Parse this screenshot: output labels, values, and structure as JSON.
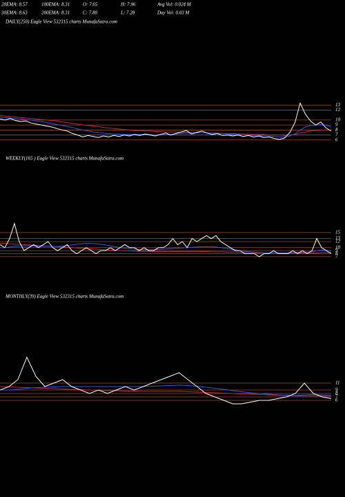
{
  "header": {
    "stats": [
      [
        "20EMA: 8.57",
        "100EMA: 8.31",
        "O: 7.65",
        "H: 7.96",
        "Avg Vol: 0.024  M"
      ],
      [
        "30EMA: 8.63",
        "200EMA: 8.31",
        "C: 7.80",
        "L: 7.28",
        "Day Vol: 0.03 M"
      ]
    ]
  },
  "chart_data": [
    {
      "type": "line",
      "title": "DAILY(250) Eagle   View  532315 charts MunafaSutra.com",
      "ylim": [
        5,
        14
      ],
      "yticks": [
        6,
        7,
        8,
        9,
        10,
        12,
        13
      ],
      "grid": true,
      "grid_color": "#a0522d",
      "series": [
        {
          "color": "#cc2244",
          "values": [
            10.9,
            10.8,
            10.7,
            10.6,
            10.5,
            10.4,
            10.3,
            10.2,
            10.1,
            10.0,
            9.9,
            9.8,
            9.6,
            9.5,
            9.3,
            9.2,
            9.0,
            8.9,
            8.8,
            8.7,
            8.5,
            8.4,
            8.3,
            8.2,
            8.1,
            8.0,
            7.9,
            7.9,
            7.8,
            7.8,
            7.7,
            7.7,
            7.6,
            7.6,
            7.6,
            7.5,
            7.5,
            7.5,
            7.5,
            7.5,
            7.4,
            7.4,
            7.4,
            7.3,
            7.3,
            7.3,
            7.2,
            7.2,
            7.2,
            7.1,
            7.1,
            7.1,
            7.0,
            7.0,
            7.0,
            6.9,
            7.0,
            7.1,
            7.4,
            7.6,
            7.8,
            7.9,
            8.0,
            8.0,
            8.0
          ]
        },
        {
          "color": "#3355ee",
          "values": [
            10.6,
            10.5,
            10.4,
            10.3,
            10.2,
            10.1,
            10.0,
            9.8,
            9.7,
            9.5,
            9.3,
            9.1,
            8.9,
            8.7,
            8.5,
            8.2,
            8.0,
            7.8,
            7.6,
            7.5,
            7.4,
            7.3,
            7.2,
            7.2,
            7.1,
            7.1,
            7.1,
            7.1,
            7.1,
            7.1,
            7.0,
            7.1,
            7.1,
            7.1,
            7.2,
            7.3,
            7.4,
            7.4,
            7.4,
            7.5,
            7.4,
            7.4,
            7.3,
            7.3,
            7.2,
            7.1,
            7.1,
            7.0,
            7.0,
            6.9,
            6.9,
            6.8,
            6.8,
            6.7,
            6.6,
            6.6,
            6.8,
            7.2,
            8.0,
            8.6,
            8.9,
            9.0,
            9.1,
            9.0,
            8.6
          ]
        },
        {
          "color": "#ffffff",
          "values": [
            10.2,
            10.0,
            10.3,
            9.9,
            9.7,
            9.8,
            9.4,
            9.2,
            9.0,
            8.8,
            8.6,
            8.3,
            8.0,
            7.8,
            7.3,
            7.0,
            6.6,
            6.9,
            6.7,
            6.5,
            6.8,
            6.6,
            6.9,
            6.7,
            7.0,
            6.8,
            7.1,
            6.9,
            7.2,
            7.0,
            6.8,
            7.1,
            7.4,
            7.0,
            7.3,
            7.6,
            7.9,
            7.2,
            7.5,
            7.8,
            7.4,
            7.1,
            7.3,
            6.9,
            7.0,
            6.8,
            7.0,
            6.7,
            6.9,
            6.6,
            6.8,
            6.5,
            6.6,
            6.3,
            6.1,
            6.4,
            7.5,
            9.5,
            13.4,
            11.2,
            9.8,
            9.0,
            9.6,
            8.4,
            7.8
          ]
        }
      ]
    },
    {
      "type": "line",
      "title": "WEEKLY(165                      ) Eagle   View  532315 charts MunafaSutra.com",
      "ylim": [
        4,
        20
      ],
      "yticks": [
        7,
        8,
        9,
        10,
        12,
        13,
        15
      ],
      "grid": true,
      "grid_color": "#a0522d",
      "series": [
        {
          "color": "#cc2244",
          "values": [
            11.5,
            11.4,
            11.3,
            11.2,
            11.1,
            11.0,
            10.9,
            10.8,
            10.7,
            10.6,
            10.5,
            10.4,
            10.3,
            10.2,
            10.1,
            10.0,
            9.9,
            9.8,
            9.7,
            9.6,
            9.5,
            9.4,
            9.3,
            9.2,
            9.1,
            9.0,
            9.0,
            8.9,
            8.9,
            8.8,
            8.8,
            8.8,
            8.7,
            8.7,
            8.7,
            8.7,
            8.7,
            8.7,
            8.7,
            8.7,
            8.7,
            8.7,
            8.7,
            8.7,
            8.6,
            8.6,
            8.6,
            8.5,
            8.5,
            8.5,
            8.4,
            8.4,
            8.4,
            8.3,
            8.3,
            8.3,
            8.3,
            8.3,
            8.2,
            8.2,
            8.2,
            8.2,
            8.2,
            8.2,
            8.2,
            8.2,
            8.3,
            8.4,
            8.4,
            8.4
          ]
        },
        {
          "color": "#3355ee",
          "values": [
            10,
            10,
            10.2,
            10.5,
            10.6,
            10.6,
            10.6,
            10.6,
            10.5,
            10.5,
            10.5,
            10.4,
            10.4,
            10.5,
            10.7,
            10.9,
            11.1,
            11.3,
            11.4,
            11.4,
            11.3,
            11.1,
            10.9,
            10.6,
            10.3,
            10.0,
            9.8,
            9.6,
            9.5,
            9.4,
            9.3,
            9.3,
            9.3,
            9.4,
            9.5,
            9.6,
            9.7,
            9.8,
            9.9,
            10,
            10.1,
            10.2,
            10.3,
            10.3,
            10.3,
            10.2,
            10,
            9.8,
            9.5,
            9.3,
            9.0,
            8.8,
            8.6,
            8.5,
            8.4,
            8.3,
            8.3,
            8.3,
            8.3,
            8.3,
            8.3,
            8.4,
            8.4,
            8.5,
            8.5,
            8.6,
            9.0,
            9.2,
            9.1,
            8.9
          ]
        },
        {
          "color": "#ffffff",
          "values": [
            11,
            10,
            13,
            18,
            12,
            9,
            10,
            11,
            10,
            11,
            12,
            10,
            9,
            10,
            11,
            9,
            8,
            9,
            10,
            9,
            8,
            9,
            9,
            10,
            9,
            10,
            11,
            10,
            10,
            9,
            10,
            9,
            9,
            10,
            10,
            11,
            13,
            11,
            12,
            10,
            13,
            12,
            13,
            14,
            13,
            14,
            12,
            11,
            10,
            9,
            9,
            8,
            8,
            8,
            7,
            8,
            8,
            9,
            8,
            8,
            8,
            9,
            8,
            9,
            8,
            9,
            13,
            10,
            9,
            8
          ]
        }
      ]
    },
    {
      "type": "line",
      "title": "MONTHLY(39) Eagle   View  532315 charts MunafaSutra.com",
      "ylim": [
        4,
        19
      ],
      "yticks": [
        6,
        7,
        8,
        9,
        11
      ],
      "grid": true,
      "grid_color": "#a0522d",
      "series": [
        {
          "color": "#cc2244",
          "values": [
            10,
            9.9,
            9.8,
            9.7,
            9.6,
            9.5,
            9.4,
            9.3,
            9.2,
            9.1,
            9.0,
            8.9,
            8.8,
            8.8,
            8.7,
            8.7,
            8.6,
            8.6,
            8.6,
            8.6,
            8.6,
            8.5,
            8.4,
            8.3,
            8.2,
            8.1,
            8.0,
            7.9,
            7.8,
            7.7,
            7.6,
            7.5,
            7.4,
            7.3,
            7.3,
            7.3,
            7.3,
            7.2
          ]
        },
        {
          "color": "#3355ee",
          "values": [
            9,
            9,
            9.2,
            9.5,
            9.7,
            9.8,
            9.9,
            10,
            10,
            10,
            10,
            10,
            10,
            10,
            10,
            10,
            10,
            10.1,
            10.2,
            10.3,
            10.4,
            10.3,
            10.1,
            9.8,
            9.5,
            9.2,
            8.8,
            8.5,
            8.2,
            8,
            7.8,
            7.6,
            7.5,
            7.4,
            7.6,
            7.7,
            7.6,
            7.5
          ]
        },
        {
          "color": "#ffffff",
          "values": [
            9,
            10,
            12,
            18.5,
            13,
            10,
            11,
            12,
            10,
            9,
            8,
            9,
            8,
            9,
            10,
            9,
            10,
            11,
            12,
            13,
            14,
            12,
            10,
            8,
            7,
            6,
            5,
            5,
            5.5,
            6,
            6,
            6.5,
            7,
            8,
            11,
            8,
            7,
            6.5
          ]
        }
      ]
    }
  ]
}
